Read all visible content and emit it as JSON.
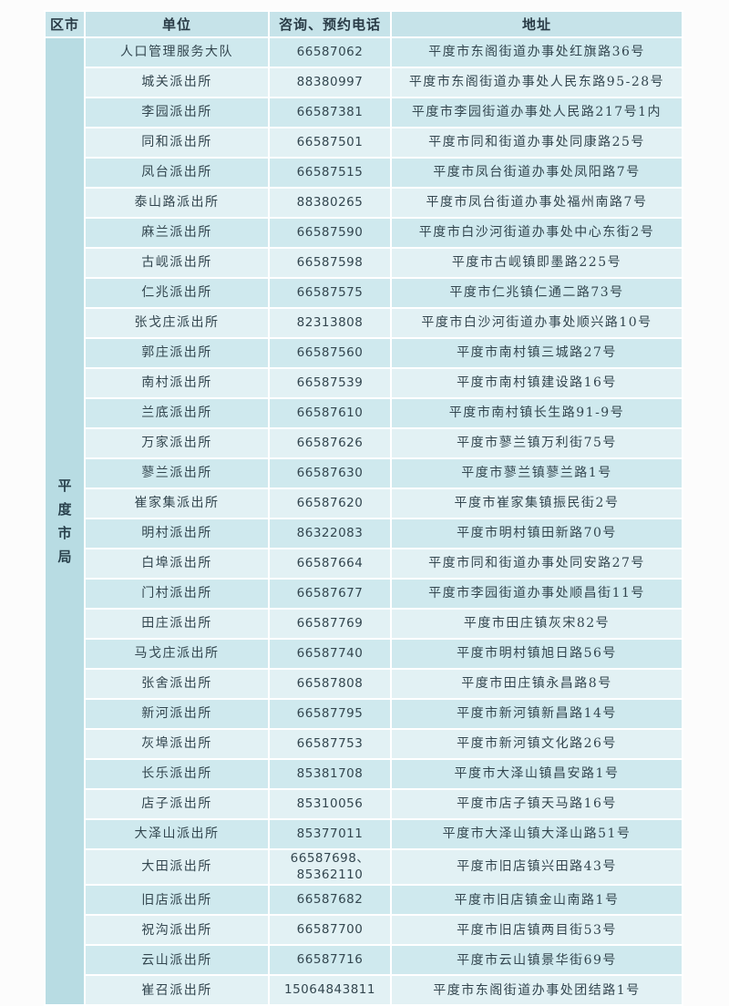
{
  "table": {
    "headers": {
      "district": "区市",
      "unit": "单位",
      "phone": "咨询、预约电话",
      "address": "地址"
    },
    "district_group": "平度市局",
    "rows": [
      {
        "unit": "人口管理服务大队",
        "phone": "66587062",
        "address": "平度市东阁街道办事处红旗路36号"
      },
      {
        "unit": "城关派出所",
        "phone": "88380997",
        "address": "平度市东阁街道办事处人民东路95-28号"
      },
      {
        "unit": "李园派出所",
        "phone": "66587381",
        "address": "平度市李园街道办事处人民路217号1内"
      },
      {
        "unit": "同和派出所",
        "phone": "66587501",
        "address": "平度市同和街道办事处同康路25号"
      },
      {
        "unit": "凤台派出所",
        "phone": "66587515",
        "address": "平度市凤台街道办事处凤阳路7号"
      },
      {
        "unit": "泰山路派出所",
        "phone": "88380265",
        "address": "平度市凤台街道办事处福州南路7号"
      },
      {
        "unit": "麻兰派出所",
        "phone": "66587590",
        "address": "平度市白沙河街道办事处中心东街2号"
      },
      {
        "unit": "古岘派出所",
        "phone": "66587598",
        "address": "平度市古岘镇即墨路225号"
      },
      {
        "unit": "仁兆派出所",
        "phone": "66587575",
        "address": "平度市仁兆镇仁通二路73号"
      },
      {
        "unit": "张戈庄派出所",
        "phone": "82313808",
        "address": "平度市白沙河街道办事处顺兴路10号"
      },
      {
        "unit": "郭庄派出所",
        "phone": "66587560",
        "address": "平度市南村镇三城路27号"
      },
      {
        "unit": "南村派出所",
        "phone": "66587539",
        "address": "平度市南村镇建设路16号"
      },
      {
        "unit": "兰底派出所",
        "phone": "66587610",
        "address": "平度市南村镇长生路91-9号"
      },
      {
        "unit": "万家派出所",
        "phone": "66587626",
        "address": "平度市蓼兰镇万利街75号"
      },
      {
        "unit": "蓼兰派出所",
        "phone": "66587630",
        "address": "平度市蓼兰镇蓼兰路1号"
      },
      {
        "unit": "崔家集派出所",
        "phone": "66587620",
        "address": "平度市崔家集镇振民街2号"
      },
      {
        "unit": "明村派出所",
        "phone": "86322083",
        "address": "平度市明村镇田新路70号"
      },
      {
        "unit": "白埠派出所",
        "phone": "66587664",
        "address": "平度市同和街道办事处同安路27号"
      },
      {
        "unit": "门村派出所",
        "phone": "66587677",
        "address": "平度市李园街道办事处顺昌街11号"
      },
      {
        "unit": "田庄派出所",
        "phone": "66587769",
        "address": "平度市田庄镇灰宋82号"
      },
      {
        "unit": "马戈庄派出所",
        "phone": "66587740",
        "address": "平度市明村镇旭日路56号"
      },
      {
        "unit": "张舍派出所",
        "phone": "66587808",
        "address": "平度市田庄镇永昌路8号"
      },
      {
        "unit": "新河派出所",
        "phone": "66587795",
        "address": "平度市新河镇新昌路14号"
      },
      {
        "unit": "灰埠派出所",
        "phone": "66587753",
        "address": "平度市新河镇文化路26号"
      },
      {
        "unit": "长乐派出所",
        "phone": "85381708",
        "address": "平度市大泽山镇昌安路1号"
      },
      {
        "unit": "店子派出所",
        "phone": "85310056",
        "address": "平度市店子镇天马路16号"
      },
      {
        "unit": "大泽山派出所",
        "phone": "85377011",
        "address": "平度市大泽山镇大泽山路51号"
      },
      {
        "unit": "大田派出所",
        "phone": "66587698、85362110",
        "address": "平度市旧店镇兴田路43号"
      },
      {
        "unit": "旧店派出所",
        "phone": "66587682",
        "address": "平度市旧店镇金山南路1号"
      },
      {
        "unit": "祝沟派出所",
        "phone": "66587700",
        "address": "平度市旧店镇两目街53号"
      },
      {
        "unit": "云山派出所",
        "phone": "66587716",
        "address": "平度市云山镇景华街69号"
      },
      {
        "unit": "崔召派出所",
        "phone": "15064843811",
        "address": "平度市东阁街道办事处团结路1号"
      }
    ]
  },
  "colors": {
    "header_bg": "#c6e3e9",
    "row_odd_bg": "#cfe9ee",
    "row_even_bg": "#e2f1f4",
    "district_col_bg": "#b8dce3",
    "separator": "#ffffff",
    "text": "#33464f"
  }
}
